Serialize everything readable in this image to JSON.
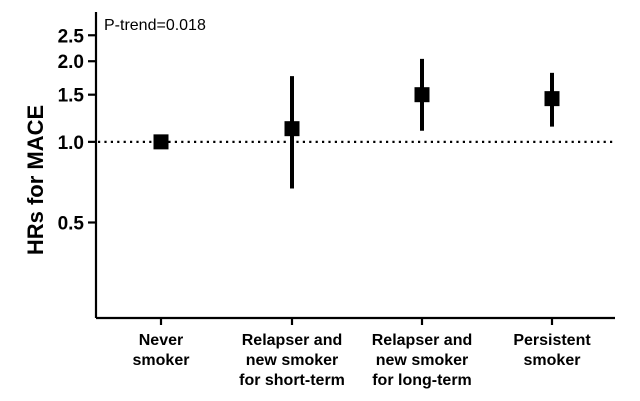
{
  "chart_data": {
    "type": "scatter",
    "title": "",
    "xlabel": "",
    "ylabel": "HRs for MACE",
    "yscale": "log",
    "ylim": [
      0.22,
      2.9
    ],
    "yticks": [
      0.5,
      1.0,
      1.5,
      2.0,
      2.5
    ],
    "ytick_labels": [
      "0.5",
      "1.0",
      "1.5",
      "2.0",
      "2.5"
    ],
    "reference_line": 1.0,
    "annotation": "P-trend=0.018",
    "grid": false,
    "categories": [
      [
        "Never",
        "smoker"
      ],
      [
        "Relapser and",
        "new smoker",
        "for short-term"
      ],
      [
        "Relapser and",
        "new smoker",
        "for long-term"
      ],
      [
        "Persistent",
        "smoker"
      ]
    ],
    "series": [
      {
        "values": [
          1.0,
          1.12,
          1.5,
          1.45
        ],
        "ci_lower": [
          1.0,
          0.67,
          1.1,
          1.14
        ],
        "ci_upper": [
          1.0,
          1.76,
          2.04,
          1.81
        ]
      }
    ]
  }
}
